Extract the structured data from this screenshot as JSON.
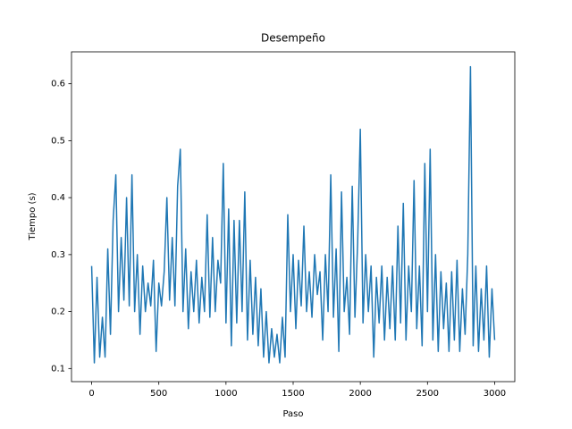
{
  "chart_data": {
    "type": "line",
    "title": "Desempeño",
    "xlabel": "Paso",
    "ylabel": "Tiempo (s)",
    "color": "#1f77b4",
    "x": [
      0,
      20,
      40,
      60,
      80,
      100,
      120,
      140,
      160,
      180,
      200,
      220,
      240,
      260,
      280,
      300,
      320,
      340,
      360,
      380,
      400,
      420,
      440,
      460,
      480,
      500,
      520,
      540,
      560,
      580,
      600,
      620,
      640,
      660,
      680,
      700,
      720,
      740,
      760,
      780,
      800,
      820,
      840,
      860,
      880,
      900,
      920,
      940,
      960,
      980,
      1000,
      1020,
      1040,
      1060,
      1080,
      1100,
      1120,
      1140,
      1160,
      1180,
      1200,
      1220,
      1240,
      1260,
      1280,
      1300,
      1320,
      1340,
      1360,
      1380,
      1400,
      1420,
      1440,
      1460,
      1480,
      1500,
      1520,
      1540,
      1560,
      1580,
      1600,
      1620,
      1640,
      1660,
      1680,
      1700,
      1720,
      1740,
      1760,
      1780,
      1800,
      1820,
      1840,
      1860,
      1880,
      1900,
      1920,
      1940,
      1960,
      1980,
      2000,
      2020,
      2040,
      2060,
      2080,
      2100,
      2120,
      2140,
      2160,
      2180,
      2200,
      2220,
      2240,
      2260,
      2280,
      2300,
      2320,
      2340,
      2360,
      2380,
      2400,
      2420,
      2440,
      2460,
      2480,
      2500,
      2520,
      2540,
      2560,
      2580,
      2600,
      2620,
      2640,
      2660,
      2680,
      2700,
      2720,
      2740,
      2760,
      2780,
      2800,
      2820,
      2840,
      2860,
      2880,
      2900,
      2920,
      2940,
      2960,
      2980,
      3000
    ],
    "values": [
      0.28,
      0.11,
      0.26,
      0.12,
      0.19,
      0.12,
      0.31,
      0.16,
      0.36,
      0.44,
      0.2,
      0.33,
      0.22,
      0.4,
      0.21,
      0.44,
      0.2,
      0.3,
      0.16,
      0.28,
      0.2,
      0.25,
      0.21,
      0.29,
      0.13,
      0.25,
      0.21,
      0.27,
      0.4,
      0.22,
      0.33,
      0.21,
      0.42,
      0.485,
      0.2,
      0.31,
      0.17,
      0.27,
      0.2,
      0.29,
      0.18,
      0.26,
      0.2,
      0.37,
      0.19,
      0.33,
      0.2,
      0.29,
      0.25,
      0.46,
      0.18,
      0.38,
      0.14,
      0.36,
      0.18,
      0.36,
      0.2,
      0.41,
      0.15,
      0.29,
      0.16,
      0.26,
      0.14,
      0.24,
      0.12,
      0.2,
      0.11,
      0.17,
      0.12,
      0.16,
      0.11,
      0.19,
      0.12,
      0.37,
      0.2,
      0.3,
      0.17,
      0.29,
      0.21,
      0.35,
      0.2,
      0.27,
      0.19,
      0.3,
      0.23,
      0.27,
      0.15,
      0.3,
      0.2,
      0.44,
      0.19,
      0.31,
      0.13,
      0.41,
      0.2,
      0.26,
      0.16,
      0.42,
      0.19,
      0.32,
      0.52,
      0.18,
      0.3,
      0.2,
      0.28,
      0.12,
      0.26,
      0.18,
      0.28,
      0.15,
      0.26,
      0.17,
      0.28,
      0.15,
      0.35,
      0.18,
      0.39,
      0.15,
      0.28,
      0.2,
      0.43,
      0.17,
      0.28,
      0.14,
      0.46,
      0.2,
      0.485,
      0.15,
      0.3,
      0.13,
      0.27,
      0.17,
      0.25,
      0.13,
      0.27,
      0.15,
      0.29,
      0.13,
      0.24,
      0.16,
      0.3,
      0.63,
      0.14,
      0.28,
      0.13,
      0.24,
      0.15,
      0.28,
      0.12,
      0.24,
      0.15
    ],
    "xlim": [
      -150,
      3150
    ],
    "xticks": [
      0,
      500,
      1000,
      1500,
      2000,
      2500,
      3000
    ],
    "ylim": [
      0.077,
      0.656
    ],
    "yticks": [
      0.1,
      0.2,
      0.3,
      0.4,
      0.5,
      0.6
    ]
  }
}
